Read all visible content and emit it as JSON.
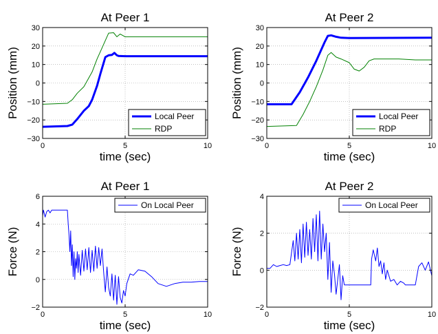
{
  "chart_data": [
    {
      "type": "line",
      "title": "At Peer 1",
      "xlabel": "time (sec)",
      "ylabel": "Position (mm)",
      "xlim": [
        0,
        10
      ],
      "ylim": [
        -30,
        30
      ],
      "xticks": [
        "0",
        "5",
        "10"
      ],
      "yticks": [
        "−30",
        "−20",
        "−10",
        "0",
        "10",
        "20",
        "30"
      ],
      "grid": true,
      "legend_position": "bottom-right",
      "series": [
        {
          "name": "Local Peer",
          "color": "#0000ff",
          "x": [
            0,
            1.5,
            1.8,
            2.1,
            2.5,
            2.8,
            3.0,
            3.3,
            3.5,
            3.8,
            4.0,
            4.2,
            4.35,
            4.5,
            4.6,
            5.0,
            10
          ],
          "y": [
            -23.7,
            -23.3,
            -22.5,
            -19.5,
            -15.0,
            -12.5,
            -9.0,
            -1.5,
            5.0,
            14.0,
            15.0,
            15.2,
            16.3,
            15.0,
            14.6,
            14.5,
            14.5
          ]
        },
        {
          "name": "RDP",
          "color": "#008000",
          "x": [
            0,
            1.5,
            1.8,
            2.1,
            2.5,
            3.0,
            3.3,
            3.5,
            3.7,
            4.0,
            4.3,
            4.5,
            4.7,
            5.0,
            10
          ],
          "y": [
            -11.5,
            -11.0,
            -9.0,
            -5.5,
            -2.0,
            6.0,
            13.0,
            17.0,
            21.0,
            27.0,
            27.2,
            25.0,
            26.5,
            25.0,
            25.0
          ]
        }
      ]
    },
    {
      "type": "line",
      "title": "At Peer 2",
      "xlabel": "time (sec)",
      "ylabel": "Position (mm)",
      "xlim": [
        0,
        10
      ],
      "ylim": [
        -30,
        30
      ],
      "xticks": [
        "0",
        "5",
        "10"
      ],
      "yticks": [
        "−30",
        "−20",
        "−10",
        "0",
        "10",
        "20",
        "30"
      ],
      "grid": true,
      "legend_position": "bottom-right",
      "series": [
        {
          "name": "Local Peer",
          "color": "#0000ff",
          "x": [
            0,
            1.5,
            2.0,
            2.5,
            3.0,
            3.5,
            3.7,
            3.9,
            4.2,
            4.5,
            5.0,
            10
          ],
          "y": [
            -11.5,
            -11.5,
            -5.0,
            3.0,
            12.0,
            22.0,
            25.5,
            25.8,
            25.0,
            24.5,
            24.3,
            24.5
          ]
        },
        {
          "name": "RDP",
          "color": "#008000",
          "x": [
            0,
            1.8,
            2.2,
            2.6,
            3.0,
            3.4,
            3.7,
            3.9,
            4.2,
            4.5,
            5.0,
            5.3,
            5.6,
            5.9,
            6.2,
            6.5,
            7.0,
            8.0,
            9.0,
            10
          ],
          "y": [
            -23.5,
            -23.0,
            -17.0,
            -10.0,
            -2.0,
            7.0,
            15.0,
            16.5,
            14.0,
            13.0,
            11.0,
            7.5,
            6.5,
            8.5,
            12.0,
            13.0,
            13.0,
            13.0,
            12.5,
            12.5
          ]
        }
      ]
    },
    {
      "type": "line",
      "title": "At Peer 1",
      "xlabel": "time (sec)",
      "ylabel": "Force (N)",
      "xlim": [
        0,
        10
      ],
      "ylim": [
        -2,
        6
      ],
      "xticks": [
        "0",
        "5",
        "10"
      ],
      "yticks": [
        "−2",
        "0",
        "2",
        "4",
        "6"
      ],
      "grid": true,
      "legend_position": "top-right",
      "series": [
        {
          "name": "On Local Peer",
          "color": "#0000ff",
          "x": [
            0,
            0.05,
            0.15,
            0.25,
            0.35,
            0.45,
            0.55,
            0.7,
            1.0,
            1.5,
            1.55,
            1.6,
            1.65,
            1.7,
            1.75,
            1.8,
            1.85,
            1.9,
            1.95,
            2.0,
            2.05,
            2.1,
            2.15,
            2.2,
            2.3,
            2.4,
            2.5,
            2.6,
            2.7,
            2.8,
            2.9,
            3.0,
            3.1,
            3.2,
            3.3,
            3.4,
            3.5,
            3.6,
            3.7,
            3.8,
            3.9,
            4.0,
            4.1,
            4.2,
            4.3,
            4.4,
            4.5,
            4.6,
            4.7,
            4.8,
            4.9,
            5.0,
            5.1,
            5.3,
            5.5,
            5.8,
            6.2,
            6.6,
            7.0,
            7.5,
            8.0,
            8.5,
            9.0,
            9.5,
            10.0
          ],
          "y": [
            4.6,
            5.0,
            4.5,
            4.9,
            5.0,
            4.8,
            5.0,
            5.0,
            5.0,
            5.0,
            4.0,
            3.2,
            2.0,
            3.5,
            1.0,
            2.5,
            0.2,
            2.0,
            0.0,
            1.5,
            0.8,
            2.0,
            0.5,
            1.8,
            0.3,
            2.1,
            0.6,
            2.2,
            0.7,
            2.3,
            0.5,
            2.1,
            0.6,
            2.4,
            0.8,
            2.3,
            1.0,
            2.2,
            0.5,
            -0.9,
            0.9,
            -0.6,
            -1.2,
            0.4,
            -1.5,
            0.3,
            -1.8,
            0.2,
            -1.3,
            -1.7,
            -0.8,
            -1.2,
            -0.3,
            0.4,
            0.3,
            0.7,
            0.6,
            0.2,
            -0.3,
            -0.5,
            -0.3,
            -0.2,
            -0.2,
            -0.15,
            -0.15
          ]
        }
      ]
    },
    {
      "type": "line",
      "title": "At Peer 2",
      "xlabel": "time (sec)",
      "ylabel": "Force (N)",
      "xlim": [
        0,
        10
      ],
      "ylim": [
        -2,
        4
      ],
      "xticks": [
        "0",
        "5",
        "10"
      ],
      "yticks": [
        "−2",
        "0",
        "2",
        "4"
      ],
      "grid": true,
      "legend_position": "top-right",
      "series": [
        {
          "name": "On Local Peer",
          "color": "#0000ff",
          "x": [
            0,
            0.2,
            0.4,
            0.6,
            0.8,
            1.0,
            1.2,
            1.4,
            1.6,
            1.7,
            1.8,
            1.9,
            2.0,
            2.1,
            2.2,
            2.3,
            2.4,
            2.5,
            2.6,
            2.7,
            2.8,
            2.9,
            3.0,
            3.1,
            3.2,
            3.3,
            3.4,
            3.5,
            3.6,
            3.7,
            3.8,
            3.9,
            4.0,
            4.1,
            4.2,
            4.3,
            4.4,
            4.5,
            4.6,
            4.7,
            4.8,
            5.0,
            5.5,
            6.0,
            6.3,
            6.35,
            6.45,
            6.6,
            6.7,
            6.8,
            6.9,
            7.0,
            7.1,
            7.2,
            7.3,
            7.5,
            7.7,
            7.9,
            8.1,
            8.3,
            8.4,
            8.6,
            8.8,
            9.0,
            9.2,
            9.4,
            9.6,
            9.8,
            10.0
          ],
          "y": [
            0.1,
            0.1,
            0.3,
            0.2,
            0.25,
            0.3,
            0.25,
            0.3,
            1.6,
            0.5,
            2.0,
            0.6,
            2.2,
            0.4,
            2.5,
            0.7,
            2.6,
            0.8,
            2.2,
            0.6,
            2.8,
            1.0,
            3.0,
            0.5,
            3.2,
            0.6,
            2.5,
            1.0,
            2.0,
            -0.5,
            1.5,
            -1.2,
            0.5,
            -0.2,
            -1.3,
            -0.5,
            0.3,
            -1.6,
            -0.3,
            -0.8,
            -0.8,
            -0.8,
            -0.8,
            -0.8,
            -0.8,
            0.6,
            1.1,
            0.5,
            1.2,
            0.2,
            0.5,
            -0.2,
            0.4,
            -0.5,
            0.0,
            -0.6,
            -0.5,
            -0.8,
            -0.6,
            -0.7,
            -0.8,
            -0.8,
            -0.8,
            -0.8,
            0.2,
            0.4,
            0.0,
            0.45,
            -0.3
          ]
        }
      ]
    }
  ]
}
